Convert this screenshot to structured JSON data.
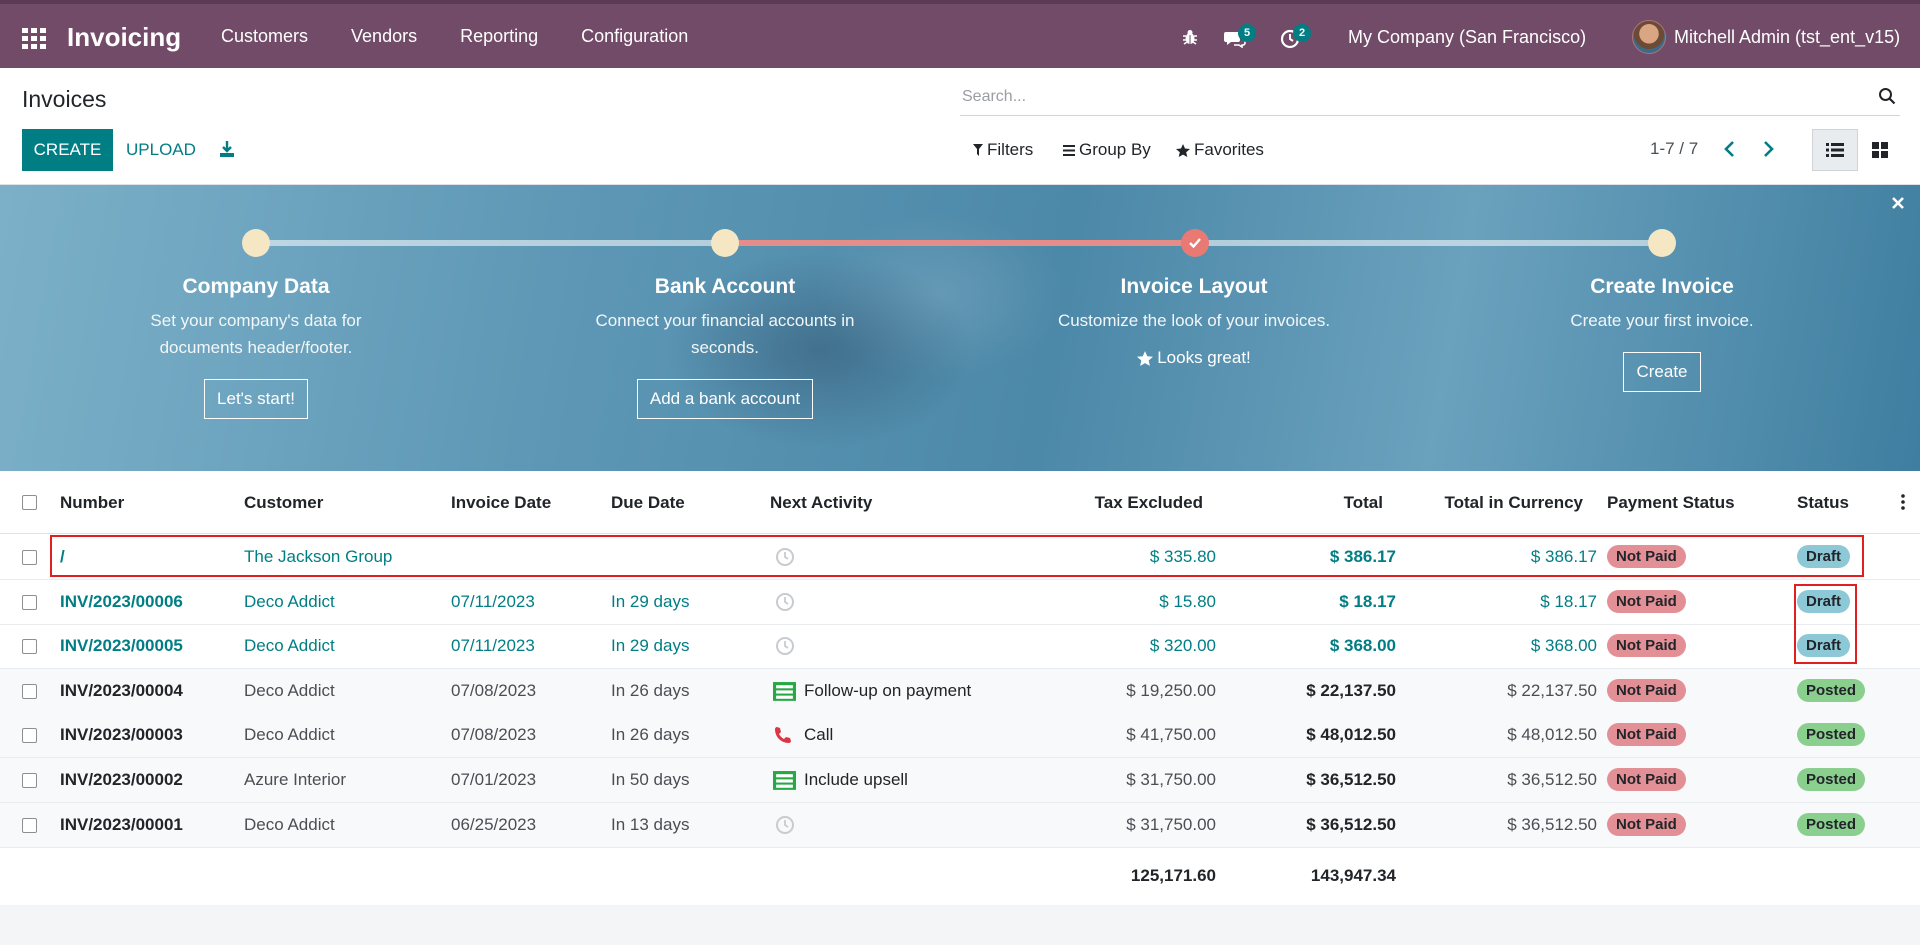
{
  "navbar": {
    "app_title": "Invoicing",
    "menu": [
      "Customers",
      "Vendors",
      "Reporting",
      "Configuration"
    ],
    "chat_badge": "5",
    "activity_badge": "2",
    "company": "My Company (San Francisco)",
    "user": "Mitchell Admin (tst_ent_v15)"
  },
  "control": {
    "title": "Invoices",
    "create_label": "CREATE",
    "upload_label": "UPLOAD",
    "search_placeholder": "Search...",
    "filters_label": "Filters",
    "groupby_label": "Group By",
    "favorites_label": "Favorites",
    "pager": "1-7 / 7"
  },
  "onboarding": {
    "steps": [
      {
        "title": "Company Data",
        "desc": "Set your company's data for documents header/footer.",
        "button": "Let's start!"
      },
      {
        "title": "Bank Account",
        "desc": "Connect your financial accounts in seconds.",
        "button": "Add a bank account"
      },
      {
        "title": "Invoice Layout",
        "desc": "Customize the look of your invoices.",
        "done_text": "Looks great!"
      },
      {
        "title": "Create Invoice",
        "desc": "Create your first invoice.",
        "button": "Create"
      }
    ]
  },
  "table": {
    "headers": {
      "number": "Number",
      "customer": "Customer",
      "invoice_date": "Invoice Date",
      "due_date": "Due Date",
      "next_activity": "Next Activity",
      "tax_excluded": "Tax Excluded",
      "total": "Total",
      "total_currency": "Total in Currency",
      "payment_status": "Payment Status",
      "status": "Status"
    },
    "rows": [
      {
        "number": "/",
        "customer": "The Jackson Group",
        "invoice_date": "",
        "due_date": "",
        "activity": "",
        "activity_icon": "clock-icon",
        "tax_excluded": "$ 335.80",
        "total": "$ 386.17",
        "total_currency": "$ 386.17",
        "payment": "Not Paid",
        "status": "Draft"
      },
      {
        "number": "INV/2023/00006",
        "customer": "Deco Addict",
        "invoice_date": "07/11/2023",
        "due_date": "In 29 days",
        "activity": "",
        "activity_icon": "clock-icon",
        "tax_excluded": "$ 15.80",
        "total": "$ 18.17",
        "total_currency": "$ 18.17",
        "payment": "Not Paid",
        "status": "Draft"
      },
      {
        "number": "INV/2023/00005",
        "customer": "Deco Addict",
        "invoice_date": "07/11/2023",
        "due_date": "In 29 days",
        "activity": "",
        "activity_icon": "clock-icon",
        "tax_excluded": "$ 320.00",
        "total": "$ 368.00",
        "total_currency": "$ 368.00",
        "payment": "Not Paid",
        "status": "Draft"
      },
      {
        "number": "INV/2023/00004",
        "customer": "Deco Addict",
        "invoice_date": "07/08/2023",
        "due_date": "In 26 days",
        "activity": "Follow-up on payment",
        "activity_icon": "list-icon",
        "tax_excluded": "$ 19,250.00",
        "total": "$ 22,137.50",
        "total_currency": "$ 22,137.50",
        "payment": "Not Paid",
        "status": "Posted"
      },
      {
        "number": "INV/2023/00003",
        "customer": "Deco Addict",
        "invoice_date": "07/08/2023",
        "due_date": "In 26 days",
        "activity": "Call",
        "activity_icon": "phone-icon",
        "tax_excluded": "$ 41,750.00",
        "total": "$ 48,012.50",
        "total_currency": "$ 48,012.50",
        "payment": "Not Paid",
        "status": "Posted"
      },
      {
        "number": "INV/2023/00002",
        "customer": "Azure Interior",
        "invoice_date": "07/01/2023",
        "due_date": "In 50 days",
        "activity": "Include upsell",
        "activity_icon": "list-icon",
        "tax_excluded": "$ 31,750.00",
        "total": "$ 36,512.50",
        "total_currency": "$ 36,512.50",
        "payment": "Not Paid",
        "status": "Posted"
      },
      {
        "number": "INV/2023/00001",
        "customer": "Deco Addict",
        "invoice_date": "06/25/2023",
        "due_date": "In 13 days",
        "activity": "",
        "activity_icon": "clock-icon",
        "tax_excluded": "$ 31,750.00",
        "total": "$ 36,512.50",
        "total_currency": "$ 36,512.50",
        "payment": "Not Paid",
        "status": "Posted"
      }
    ],
    "totals": {
      "tax_excluded": "125,171.60",
      "total": "143,947.34"
    }
  },
  "colors": {
    "brand": "#714b67",
    "primary": "#017e84",
    "not_paid": "#e38f96",
    "draft": "#8cc8d6",
    "posted": "#8bcf8f",
    "highlight_box": "#e02020"
  }
}
